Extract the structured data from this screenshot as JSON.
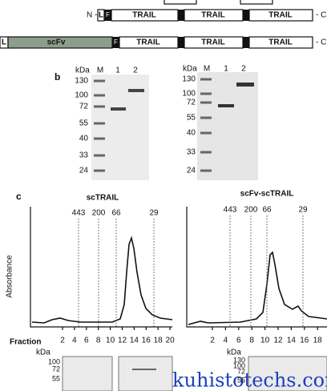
{
  "constructs": {
    "row1": {
      "n": "N -",
      "l": "L",
      "f": "F",
      "trail": [
        "TRAIL",
        "TRAIL",
        "TRAIL"
      ],
      "c": "- C"
    },
    "row2": {
      "l": "L",
      "scfv": "scFv",
      "f": "F",
      "trail": [
        "TRAIL",
        "TRAIL",
        "TRAIL"
      ],
      "c": "- C"
    }
  },
  "panel_b": {
    "label": "b",
    "gel1": {
      "unit": "kDa",
      "lanes": [
        "M",
        "1",
        "2"
      ],
      "markers": [
        130,
        100,
        72,
        55,
        40,
        33,
        24
      ]
    },
    "gel2": {
      "unit": "kDa",
      "lanes": [
        "M",
        "1",
        "2"
      ],
      "markers": [
        130,
        100,
        72,
        55,
        40,
        33,
        24
      ]
    }
  },
  "panel_c": {
    "label": "c",
    "y_label": "Absorbance",
    "fraction_label": "Fraction",
    "left": {
      "title": "scTRAIL",
      "standards": [
        443,
        200,
        66,
        29
      ],
      "fractions": [
        2,
        4,
        6,
        8,
        10,
        12,
        14,
        16,
        18,
        20
      ]
    },
    "right": {
      "title": "scFv-scTRAIL",
      "standards": [
        443,
        200,
        66,
        29
      ],
      "fractions": [
        2,
        4,
        6,
        8,
        10,
        12,
        14,
        16,
        18
      ]
    }
  },
  "blots": {
    "left": {
      "unit": "kDa",
      "markers": [
        100,
        72,
        55
      ]
    },
    "right": {
      "unit": "kDa",
      "markers": [
        130,
        100,
        72,
        55
      ]
    }
  },
  "watermark": "kuhistotechs.com"
}
